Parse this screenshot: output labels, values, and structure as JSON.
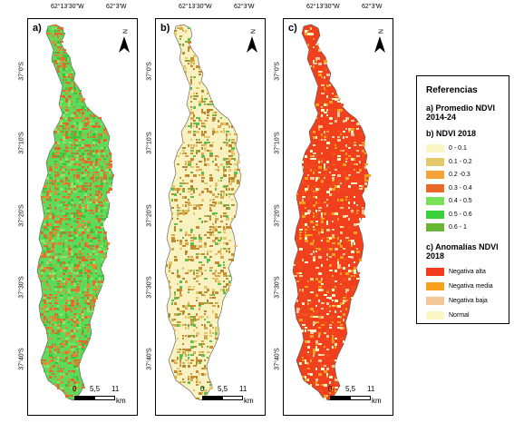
{
  "panels": [
    {
      "id": "a",
      "label": "a)",
      "theme": "green"
    },
    {
      "id": "b",
      "label": "b)",
      "theme": "cream"
    },
    {
      "id": "c",
      "label": "c)",
      "theme": "red"
    }
  ],
  "lon_labels": [
    "62°13'30\"W",
    "62°3'W"
  ],
  "lat_labels": [
    "37°0'S",
    "37°10'S",
    "37°20'S",
    "37°30'S",
    "37°40'S"
  ],
  "north_letter": "N",
  "scalebar": {
    "left": "0",
    "mid": "5,5",
    "right": "11",
    "unit": "km"
  },
  "legend": {
    "title": "Referencias",
    "section_a": "a) Promedio NDVI 2014-24",
    "section_b": "b) NDVI 2018",
    "ndvi_classes": [
      {
        "label": "0 - 0.1",
        "color": "#fbf5c3"
      },
      {
        "label": "0.1 - 0.2",
        "color": "#e3c86c"
      },
      {
        "label": "0.2 -0.3",
        "color": "#f4a23a"
      },
      {
        "label": "0.3 - 0.4",
        "color": "#e86a26"
      },
      {
        "label": "0.4 - 0.5",
        "color": "#78e05a"
      },
      {
        "label": "0.5 - 0.6",
        "color": "#3bd13b"
      },
      {
        "label": "0.6 - 1",
        "color": "#6ab532"
      }
    ],
    "section_c": "c) Anomalías NDVI 2018",
    "anomaly_classes": [
      {
        "label": "Negativa alta",
        "color": "#f23b1f"
      },
      {
        "label": "Negativa media",
        "color": "#f7a11b"
      },
      {
        "label": "Negativa baja",
        "color": "#f2c79a"
      },
      {
        "label": "Normal",
        "color": "#fdf7c7"
      }
    ]
  }
}
